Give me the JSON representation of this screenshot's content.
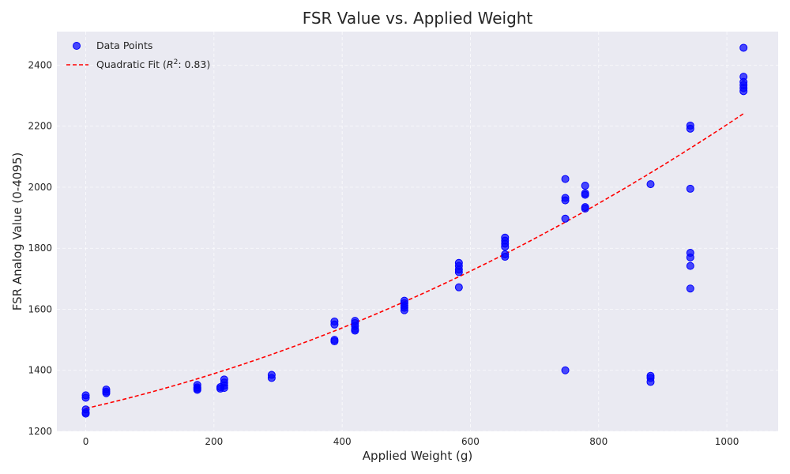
{
  "chart_data": {
    "type": "scatter",
    "title": "FSR Value vs. Applied Weight",
    "xlabel": "Applied Weight (g)",
    "ylabel": "FSR Analog Value (0-4095)",
    "xlim": [
      -45,
      1080
    ],
    "ylim": [
      1200,
      2510
    ],
    "xticks": [
      0,
      200,
      400,
      600,
      800,
      1000
    ],
    "yticks": [
      1200,
      1400,
      1600,
      1800,
      2000,
      2200,
      2400
    ],
    "grid": true,
    "legend": {
      "placement": "top-left"
    },
    "colors": {
      "background": "#eaeaf2",
      "points": "#0000ff",
      "fit": "#ff0000"
    },
    "series": [
      {
        "name": "Data Points",
        "kind": "scatter",
        "points": [
          [
            0,
            1258
          ],
          [
            0,
            1262
          ],
          [
            0,
            1272
          ],
          [
            0,
            1310
          ],
          [
            0,
            1318
          ],
          [
            32,
            1325
          ],
          [
            32,
            1330
          ],
          [
            32,
            1337
          ],
          [
            174,
            1336
          ],
          [
            174,
            1340
          ],
          [
            174,
            1344
          ],
          [
            174,
            1352
          ],
          [
            210,
            1340
          ],
          [
            210,
            1345
          ],
          [
            216,
            1342
          ],
          [
            216,
            1350
          ],
          [
            216,
            1360
          ],
          [
            216,
            1370
          ],
          [
            290,
            1375
          ],
          [
            290,
            1385
          ],
          [
            388,
            1495
          ],
          [
            388,
            1500
          ],
          [
            388,
            1550
          ],
          [
            388,
            1560
          ],
          [
            420,
            1530
          ],
          [
            420,
            1535
          ],
          [
            420,
            1545
          ],
          [
            420,
            1555
          ],
          [
            420,
            1562
          ],
          [
            497,
            1597
          ],
          [
            497,
            1605
          ],
          [
            497,
            1612
          ],
          [
            497,
            1620
          ],
          [
            497,
            1628
          ],
          [
            582,
            1672
          ],
          [
            582,
            1722
          ],
          [
            582,
            1730
          ],
          [
            582,
            1742
          ],
          [
            582,
            1752
          ],
          [
            654,
            1772
          ],
          [
            654,
            1780
          ],
          [
            654,
            1805
          ],
          [
            654,
            1815
          ],
          [
            654,
            1825
          ],
          [
            654,
            1835
          ],
          [
            748,
            1400
          ],
          [
            748,
            1897
          ],
          [
            748,
            1957
          ],
          [
            748,
            1965
          ],
          [
            748,
            2027
          ],
          [
            779,
            1930
          ],
          [
            779,
            1935
          ],
          [
            779,
            1975
          ],
          [
            779,
            1980
          ],
          [
            779,
            2005
          ],
          [
            881,
            1362
          ],
          [
            881,
            1375
          ],
          [
            881,
            1382
          ],
          [
            881,
            2010
          ],
          [
            943,
            1668
          ],
          [
            943,
            1742
          ],
          [
            943,
            1770
          ],
          [
            943,
            1785
          ],
          [
            943,
            1995
          ],
          [
            943,
            2192
          ],
          [
            943,
            2202
          ],
          [
            1026,
            2315
          ],
          [
            1026,
            2325
          ],
          [
            1026,
            2335
          ],
          [
            1026,
            2345
          ],
          [
            1026,
            2362
          ],
          [
            1026,
            2457
          ]
        ]
      },
      {
        "name": "Quadratic Fit (R²: 0.83)",
        "kind": "line",
        "style": "dashed",
        "equation": "y = 1275 + 0.48x + 0.00045x²",
        "coefficients": {
          "a": 0.00045,
          "b": 0.48,
          "c": 1275
        },
        "x_range": [
          0,
          1026
        ]
      }
    ]
  },
  "legend": {
    "points_label": "Data Points",
    "fit_label_prefix": "Quadratic Fit (",
    "fit_label_r": "R",
    "fit_label_sup": "2",
    "fit_label_suffix": ": 0.83)"
  }
}
